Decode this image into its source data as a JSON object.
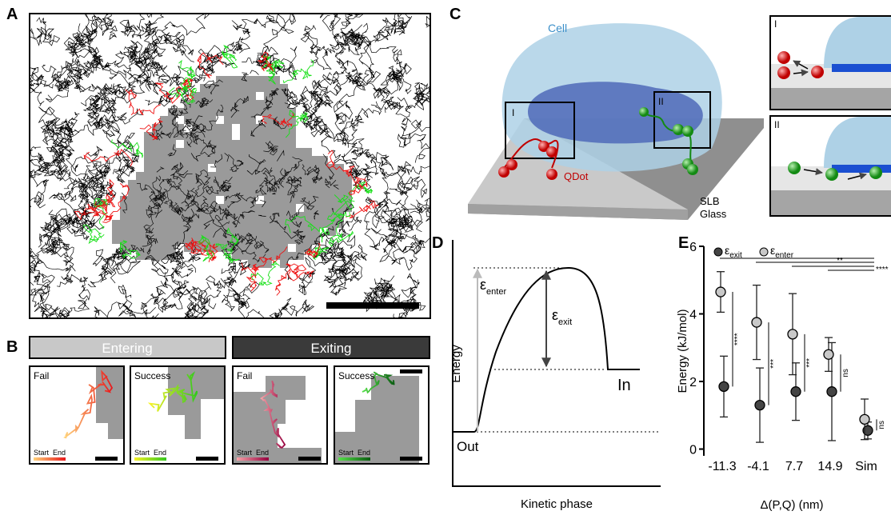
{
  "panel_labels": {
    "A": "A",
    "B": "B",
    "C": "C",
    "D": "D",
    "E": "E"
  },
  "panel_b": {
    "entering": "Entering",
    "exiting": "Exiting",
    "insets": [
      {
        "title": "Fail",
        "start": "Start",
        "end": "End"
      },
      {
        "title": "Success",
        "start": "Start",
        "end": "End"
      },
      {
        "title": "Fail",
        "start": "Start",
        "end": "End"
      },
      {
        "title": "Success",
        "start": "Start",
        "end": "End"
      }
    ]
  },
  "panel_c": {
    "cell": "Cell",
    "qdot": "QDot",
    "slb": "SLB",
    "glass": "Glass",
    "region_1": "I",
    "region_2": "II"
  },
  "panel_d": {
    "y_label": "Energy",
    "x_label": "Kinetic phase",
    "out": "Out",
    "in": "In",
    "symbol": "ε",
    "enter": "enter",
    "exit": "exit"
  },
  "chart_data": {
    "type": "errorbar",
    "x_label": "Δ(P,Q) (nm)",
    "y_label": "Energy (kJ/mol)",
    "categories": [
      "-11.3",
      "-4.1",
      "7.7",
      "14.9",
      "Sim"
    ],
    "ylim": [
      -0.2,
      6
    ],
    "yticks": [
      0,
      2,
      4,
      6
    ],
    "series": [
      {
        "name": "ε",
        "name_sub": "exit",
        "color": "#444444",
        "values": [
          1.85,
          1.3,
          1.7,
          1.7,
          0.55
        ],
        "errors": [
          0.9,
          1.1,
          0.85,
          1.45,
          0.25
        ]
      },
      {
        "name": "ε",
        "name_sub": "enter",
        "color": "#c8c8c8",
        "values": [
          4.65,
          3.75,
          3.4,
          2.8,
          0.88
        ],
        "errors": [
          0.6,
          1.1,
          1.2,
          0.5,
          0.6
        ]
      }
    ],
    "pair_labels": [
      "****",
      "***",
      "***",
      "ns",
      "ns"
    ],
    "top_labels": [
      "**",
      "****"
    ]
  }
}
